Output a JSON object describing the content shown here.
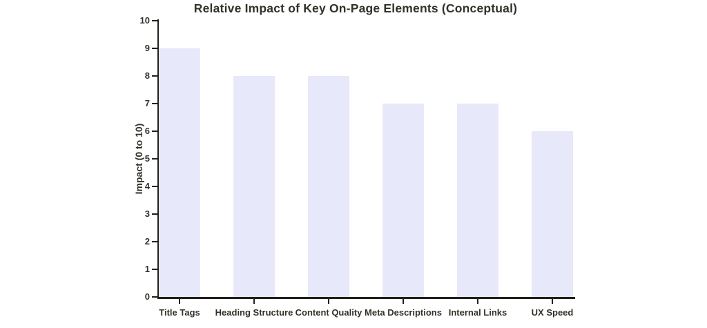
{
  "chart_data": {
    "type": "bar",
    "title": "Relative Impact of Key On-Page Elements (Conceptual)",
    "categories": [
      "Title Tags",
      "Heading Structure",
      "Content Quality",
      "Meta Descriptions",
      "Internal Links",
      "UX Speed"
    ],
    "values": [
      9,
      8,
      8,
      7,
      7,
      6
    ],
    "xlabel": "",
    "ylabel": "Impact (0 to 10)",
    "ylim": [
      0,
      10
    ],
    "ytick_step": 1,
    "ytick_labels": [
      "0",
      "1",
      "2",
      "3",
      "4",
      "5",
      "6",
      "7",
      "8",
      "9",
      "10"
    ],
    "grid": false,
    "legend": false,
    "bar_color": "#e8e8fb",
    "axis_color": "#21211a",
    "text_color": "#32322b",
    "background_color": "#ffffff"
  }
}
